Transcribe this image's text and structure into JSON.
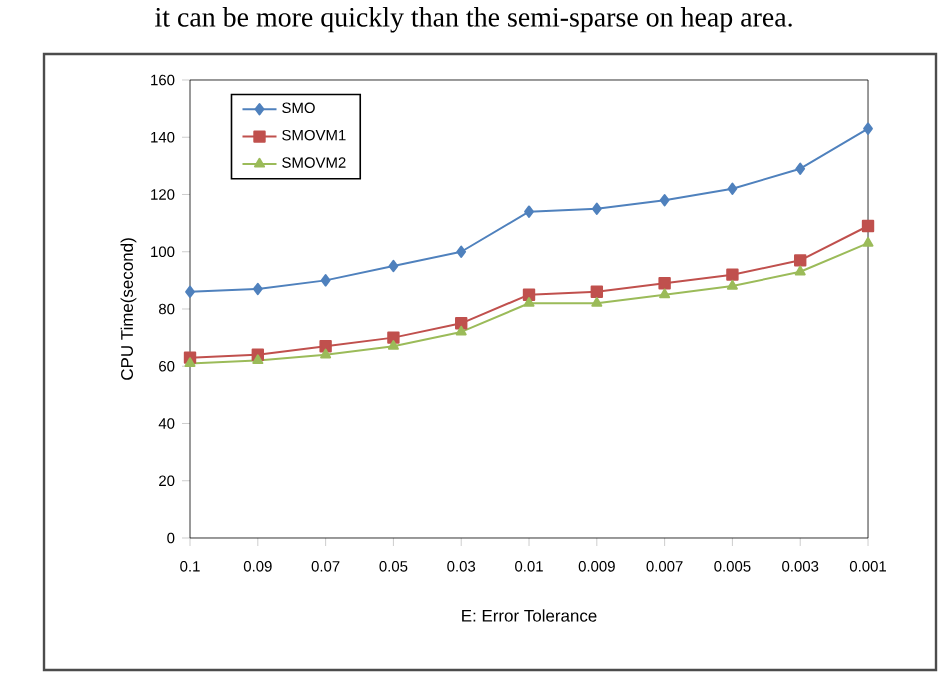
{
  "chart_data": {
    "type": "line",
    "annotations": [
      "it can be more quickly than the semi-sparse on heap area."
    ],
    "xlabel": "E: Error Tolerance",
    "ylabel": "CPU Time(second)",
    "categories": [
      "0.1",
      "0.09",
      "0.07",
      "0.05",
      "0.03",
      "0.01",
      "0.009",
      "0.007",
      "0.005",
      "0.003",
      "0.001"
    ],
    "ylim": [
      0,
      160
    ],
    "yticks": [
      0,
      20,
      40,
      60,
      80,
      100,
      120,
      140,
      160
    ],
    "legend": "top left",
    "grid": false,
    "line_style": "solid",
    "series": [
      {
        "name": "SMO",
        "color": "#4f81bd",
        "marker": "diamond",
        "values": [
          86,
          87,
          90,
          95,
          100,
          114,
          115,
          118,
          122,
          129,
          143
        ]
      },
      {
        "name": "SMOVM1",
        "color": "#c0504d",
        "marker": "square",
        "values": [
          63,
          64,
          67,
          70,
          75,
          85,
          86,
          89,
          92,
          97,
          109
        ]
      },
      {
        "name": "SMOVM2",
        "color": "#9bbb59",
        "marker": "triangle",
        "values": [
          61,
          62,
          64,
          67,
          72,
          82,
          82,
          85,
          88,
          93,
          103
        ]
      }
    ]
  }
}
